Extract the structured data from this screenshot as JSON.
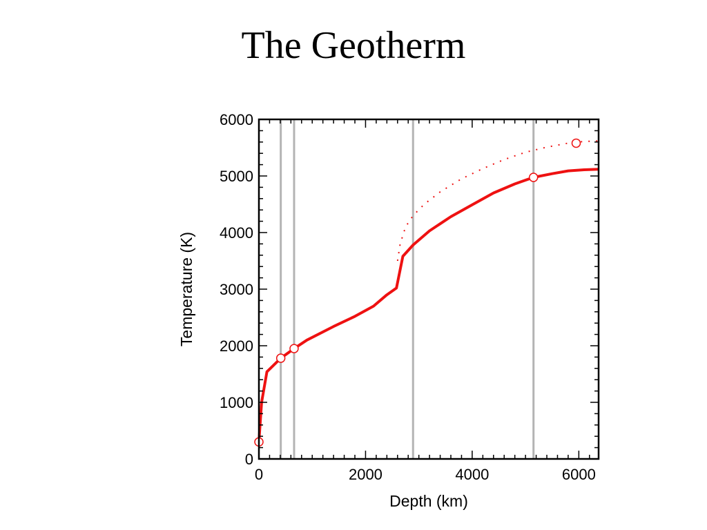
{
  "slide": {
    "title": "The Geotherm"
  },
  "colors": {
    "curve": "#ee1111",
    "boundary": "#b4b4b4",
    "axis": "#000000",
    "marker_fill": "#ffffff"
  },
  "chart_data": {
    "type": "line",
    "title": "The Geotherm",
    "xlabel": "Depth (km)",
    "ylabel": "Temperature (K)",
    "xlim": [
      0,
      6371
    ],
    "ylim": [
      0,
      6000
    ],
    "xticks": [
      0,
      2000,
      4000,
      6000
    ],
    "yticks": [
      0,
      1000,
      2000,
      3000,
      4000,
      5000,
      6000
    ],
    "grid": false,
    "legend": "none",
    "boundaries_km": [
      410,
      660,
      2891,
      5150
    ],
    "series": [
      {
        "style": "solid",
        "x": [
          0,
          50,
          150,
          410,
          660,
          900,
          1400,
          1800,
          2150,
          2400,
          2580,
          2700,
          2891,
          3200,
          3600,
          4000,
          4400,
          4800,
          5150,
          5500,
          5800,
          6100,
          6371
        ],
        "y": [
          300,
          1000,
          1540,
          1780,
          1950,
          2100,
          2340,
          2520,
          2700,
          2900,
          3020,
          3580,
          3780,
          4030,
          4280,
          4490,
          4700,
          4860,
          4975,
          5040,
          5090,
          5110,
          5120
        ]
      },
      {
        "style": "dotted",
        "x": [
          2600,
          2650,
          2750,
          2891,
          3100,
          3400,
          3800,
          4200,
          4600,
          5000,
          5400,
          5800,
          6100,
          6371
        ],
        "y": [
          3500,
          3800,
          4100,
          4300,
          4500,
          4720,
          4950,
          5130,
          5290,
          5420,
          5510,
          5580,
          5610,
          5620
        ]
      }
    ],
    "markers": [
      {
        "x": 0,
        "y": 300
      },
      {
        "x": 410,
        "y": 1780
      },
      {
        "x": 660,
        "y": 1950
      },
      {
        "x": 5150,
        "y": 4975
      },
      {
        "x": 5950,
        "y": 5580
      }
    ]
  }
}
